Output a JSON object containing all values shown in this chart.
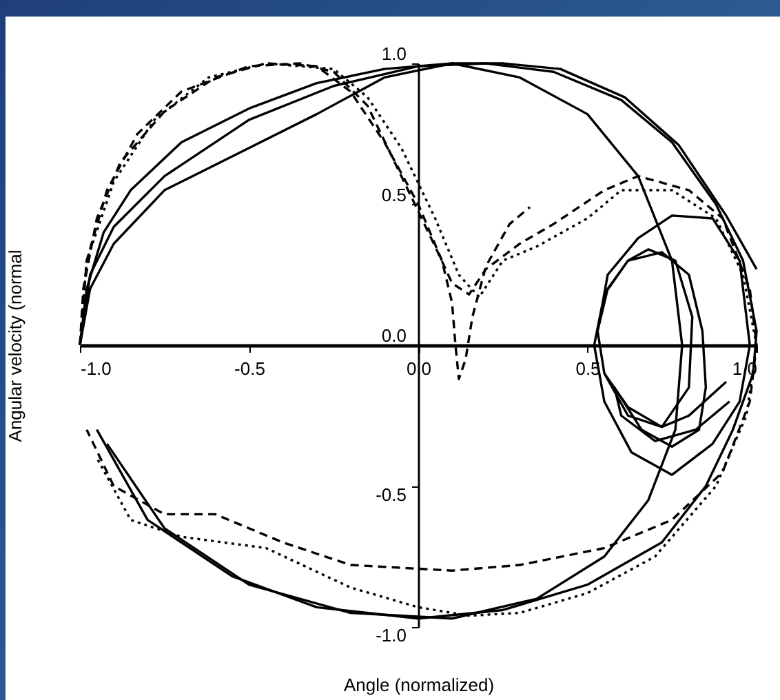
{
  "chart_data": {
    "type": "line",
    "xlabel": "Angle (normalized)",
    "ylabel": "Angular velocity (normal",
    "xlim": [
      -1,
      1
    ],
    "ylim": [
      -1,
      1
    ],
    "xticks": [
      {
        "value": -1,
        "label": "-1.0"
      },
      {
        "value": -0.5,
        "label": "-0.5"
      },
      {
        "value": 0,
        "label": "0.0"
      },
      {
        "value": 0.5,
        "label": "0.5"
      },
      {
        "value": 1,
        "label": "1.0"
      }
    ],
    "yticks": [
      {
        "value": -1,
        "label": "-1.0"
      },
      {
        "value": -0.5,
        "label": "-0.5"
      },
      {
        "value": 0,
        "label": "0.0"
      },
      {
        "value": 0.5,
        "label": "0.5"
      },
      {
        "value": 1,
        "label": "1.0"
      }
    ],
    "grid": false,
    "legend": false,
    "marker": "none",
    "series": [
      {
        "color": "#000000",
        "line_style": "solid",
        "x": [
          -1,
          -0.98,
          -0.93,
          -0.85,
          -0.7,
          -0.5,
          -0.3,
          -0.1,
          0.1,
          0.25,
          0.42,
          0.61,
          0.77,
          0.91,
          1.0
        ],
        "values": [
          0,
          0.2,
          0.4,
          0.55,
          0.72,
          0.84,
          0.93,
          0.98,
          1.0,
          1.0,
          0.98,
          0.88,
          0.71,
          0.46,
          0.27
        ]
      },
      {
        "color": "#000000",
        "line_style": "solid",
        "x": [
          -1,
          -0.97,
          -0.9,
          -0.75,
          -0.5,
          -0.3,
          -0.1,
          0.1,
          0.3,
          0.5,
          0.65,
          0.75,
          0.78,
          0.76,
          0.68,
          0.55,
          0.35,
          0.1,
          -0.2,
          -0.5,
          -0.75,
          -0.92
        ],
        "values": [
          0,
          0.2,
          0.36,
          0.55,
          0.7,
          0.82,
          0.95,
          1.0,
          0.95,
          0.82,
          0.6,
          0.3,
          0,
          -0.3,
          -0.55,
          -0.75,
          -0.9,
          -0.97,
          -0.95,
          -0.85,
          -0.65,
          -0.35
        ]
      },
      {
        "color": "#000000",
        "line_style": "solid",
        "x": [
          -1,
          -0.97,
          -0.9,
          -0.75,
          -0.5,
          -0.25,
          0,
          0.2,
          0.4,
          0.6,
          0.75,
          0.88,
          0.96,
          1.0,
          0.99,
          0.93,
          0.85,
          0.72,
          0.5,
          0.25,
          0,
          -0.3,
          -0.55,
          -0.8,
          -0.95
        ],
        "values": [
          0,
          0.25,
          0.42,
          0.6,
          0.8,
          0.92,
          0.99,
          1.0,
          0.97,
          0.87,
          0.72,
          0.5,
          0.3,
          0.05,
          -0.1,
          -0.3,
          -0.5,
          -0.7,
          -0.85,
          -0.94,
          -0.97,
          -0.93,
          -0.82,
          -0.62,
          -0.3
        ]
      },
      {
        "color": "#000000",
        "line_style": "solid",
        "x": [
          0.91,
          0.8,
          0.72,
          0.62,
          0.55,
          0.53,
          0.56,
          0.62,
          0.68,
          0.76,
          0.81,
          0.8,
          0.72,
          0.62,
          0.55,
          0.53,
          0.56,
          0.65,
          0.75,
          0.87,
          0.95,
          0.98,
          0.95,
          0.87,
          0.75,
          0.63,
          0.55,
          0.52,
          0.55,
          0.62,
          0.72,
          0.8,
          0.84,
          0.85,
          0.83,
          0.75,
          0.66,
          0.58,
          0.6,
          0.7,
          0.82,
          0.92
        ],
        "values": [
          -0.13,
          -0.25,
          -0.29,
          -0.22,
          -0.1,
          0.05,
          0.2,
          0.3,
          0.34,
          0.3,
          0.1,
          -0.15,
          -0.29,
          -0.25,
          -0.1,
          0.05,
          0.25,
          0.38,
          0.46,
          0.45,
          0.3,
          0.0,
          -0.2,
          -0.35,
          -0.46,
          -0.38,
          -0.2,
          0.0,
          0.18,
          0.3,
          0.33,
          0.25,
          0.05,
          -0.15,
          -0.3,
          -0.36,
          -0.3,
          -0.15,
          -0.25,
          -0.34,
          -0.3,
          -0.2
        ]
      },
      {
        "color": "#000000",
        "line_style": "dashed",
        "x": [
          -1,
          -0.98,
          -0.92,
          -0.83,
          -0.7,
          -0.5,
          -0.35,
          -0.25,
          -0.15,
          -0.05,
          0.05,
          0.1,
          0.15,
          0.2,
          0.3,
          0.4,
          0.55,
          0.65,
          0.8,
          0.9,
          0.98,
          1.0,
          0.98,
          0.9,
          0.75,
          0.55,
          0.3,
          0.1,
          -0.2,
          -0.4,
          -0.6,
          -0.75,
          -0.9,
          -0.98
        ],
        "values": [
          0,
          0.3,
          0.55,
          0.75,
          0.9,
          0.99,
          1.0,
          0.97,
          0.85,
          0.6,
          0.35,
          0.22,
          0.18,
          0.27,
          0.36,
          0.43,
          0.55,
          0.6,
          0.55,
          0.45,
          0.2,
          0,
          -0.2,
          -0.45,
          -0.62,
          -0.72,
          -0.78,
          -0.8,
          -0.78,
          -0.7,
          -0.6,
          -0.6,
          -0.5,
          -0.3
        ]
      },
      {
        "color": "#000000",
        "line_style": "dashed",
        "x": [
          -1,
          -0.99,
          -0.95,
          -0.88,
          -0.75,
          -0.6,
          -0.45,
          -0.3,
          -0.2,
          -0.1,
          0,
          0.07,
          0.1,
          0.11,
          0.12,
          0.14,
          0.16,
          0.2,
          0.27,
          0.33
        ],
        "values": [
          0,
          0.2,
          0.45,
          0.65,
          0.83,
          0.95,
          1.0,
          0.99,
          0.9,
          0.72,
          0.5,
          0.3,
          0.15,
          0,
          -0.12,
          -0.05,
          0.1,
          0.28,
          0.43,
          0.49
        ]
      },
      {
        "color": "#000000",
        "line_style": "dotted",
        "x": [
          -1,
          -0.98,
          -0.9,
          -0.78,
          -0.62,
          -0.45,
          -0.25,
          -0.15,
          -0.05,
          0.05,
          0.12,
          0.18,
          0.25,
          0.35,
          0.5,
          0.6,
          0.75,
          0.88,
          0.96,
          1.0,
          0.97,
          0.88,
          0.7,
          0.5,
          0.3,
          0.15,
          0,
          -0.2,
          -0.45,
          -0.7,
          -0.85,
          -0.95
        ],
        "values": [
          0,
          0.3,
          0.58,
          0.8,
          0.95,
          1.0,
          0.98,
          0.88,
          0.7,
          0.45,
          0.25,
          0.17,
          0.3,
          0.35,
          0.45,
          0.55,
          0.55,
          0.45,
          0.25,
          0.0,
          -0.25,
          -0.5,
          -0.75,
          -0.88,
          -0.95,
          -0.96,
          -0.93,
          -0.86,
          -0.72,
          -0.68,
          -0.62,
          -0.4
        ]
      }
    ]
  }
}
